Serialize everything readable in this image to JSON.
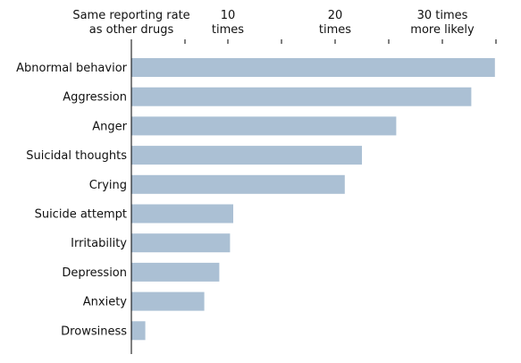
{
  "chart_data": {
    "type": "bar",
    "orientation": "horizontal",
    "axis_position": "top",
    "grid": false,
    "xlim": [
      1,
      35
    ],
    "x_ticks": [
      {
        "value": 1,
        "lines": [
          "Same reporting rate",
          "as other drugs"
        ]
      },
      {
        "value": 6,
        "lines": []
      },
      {
        "value": 10,
        "lines": [
          "10",
          "times"
        ]
      },
      {
        "value": 15,
        "lines": []
      },
      {
        "value": 20,
        "lines": [
          "20",
          "times"
        ]
      },
      {
        "value": 25,
        "lines": []
      },
      {
        "value": 30,
        "lines": [
          "30 times",
          "more likely"
        ]
      },
      {
        "value": 35,
        "lines": []
      }
    ],
    "categories": [
      "Abnormal behavior",
      "Aggression",
      "Anger",
      "Suicidal thoughts",
      "Crying",
      "Suicide attempt",
      "Irritability",
      "Depression",
      "Anxiety",
      "Drowsiness"
    ],
    "values": [
      34.9,
      32.7,
      25.7,
      22.5,
      20.9,
      10.5,
      10.2,
      9.2,
      7.8,
      2.3
    ],
    "bar_color": "#abc0d4",
    "axis_color": "#000000"
  }
}
